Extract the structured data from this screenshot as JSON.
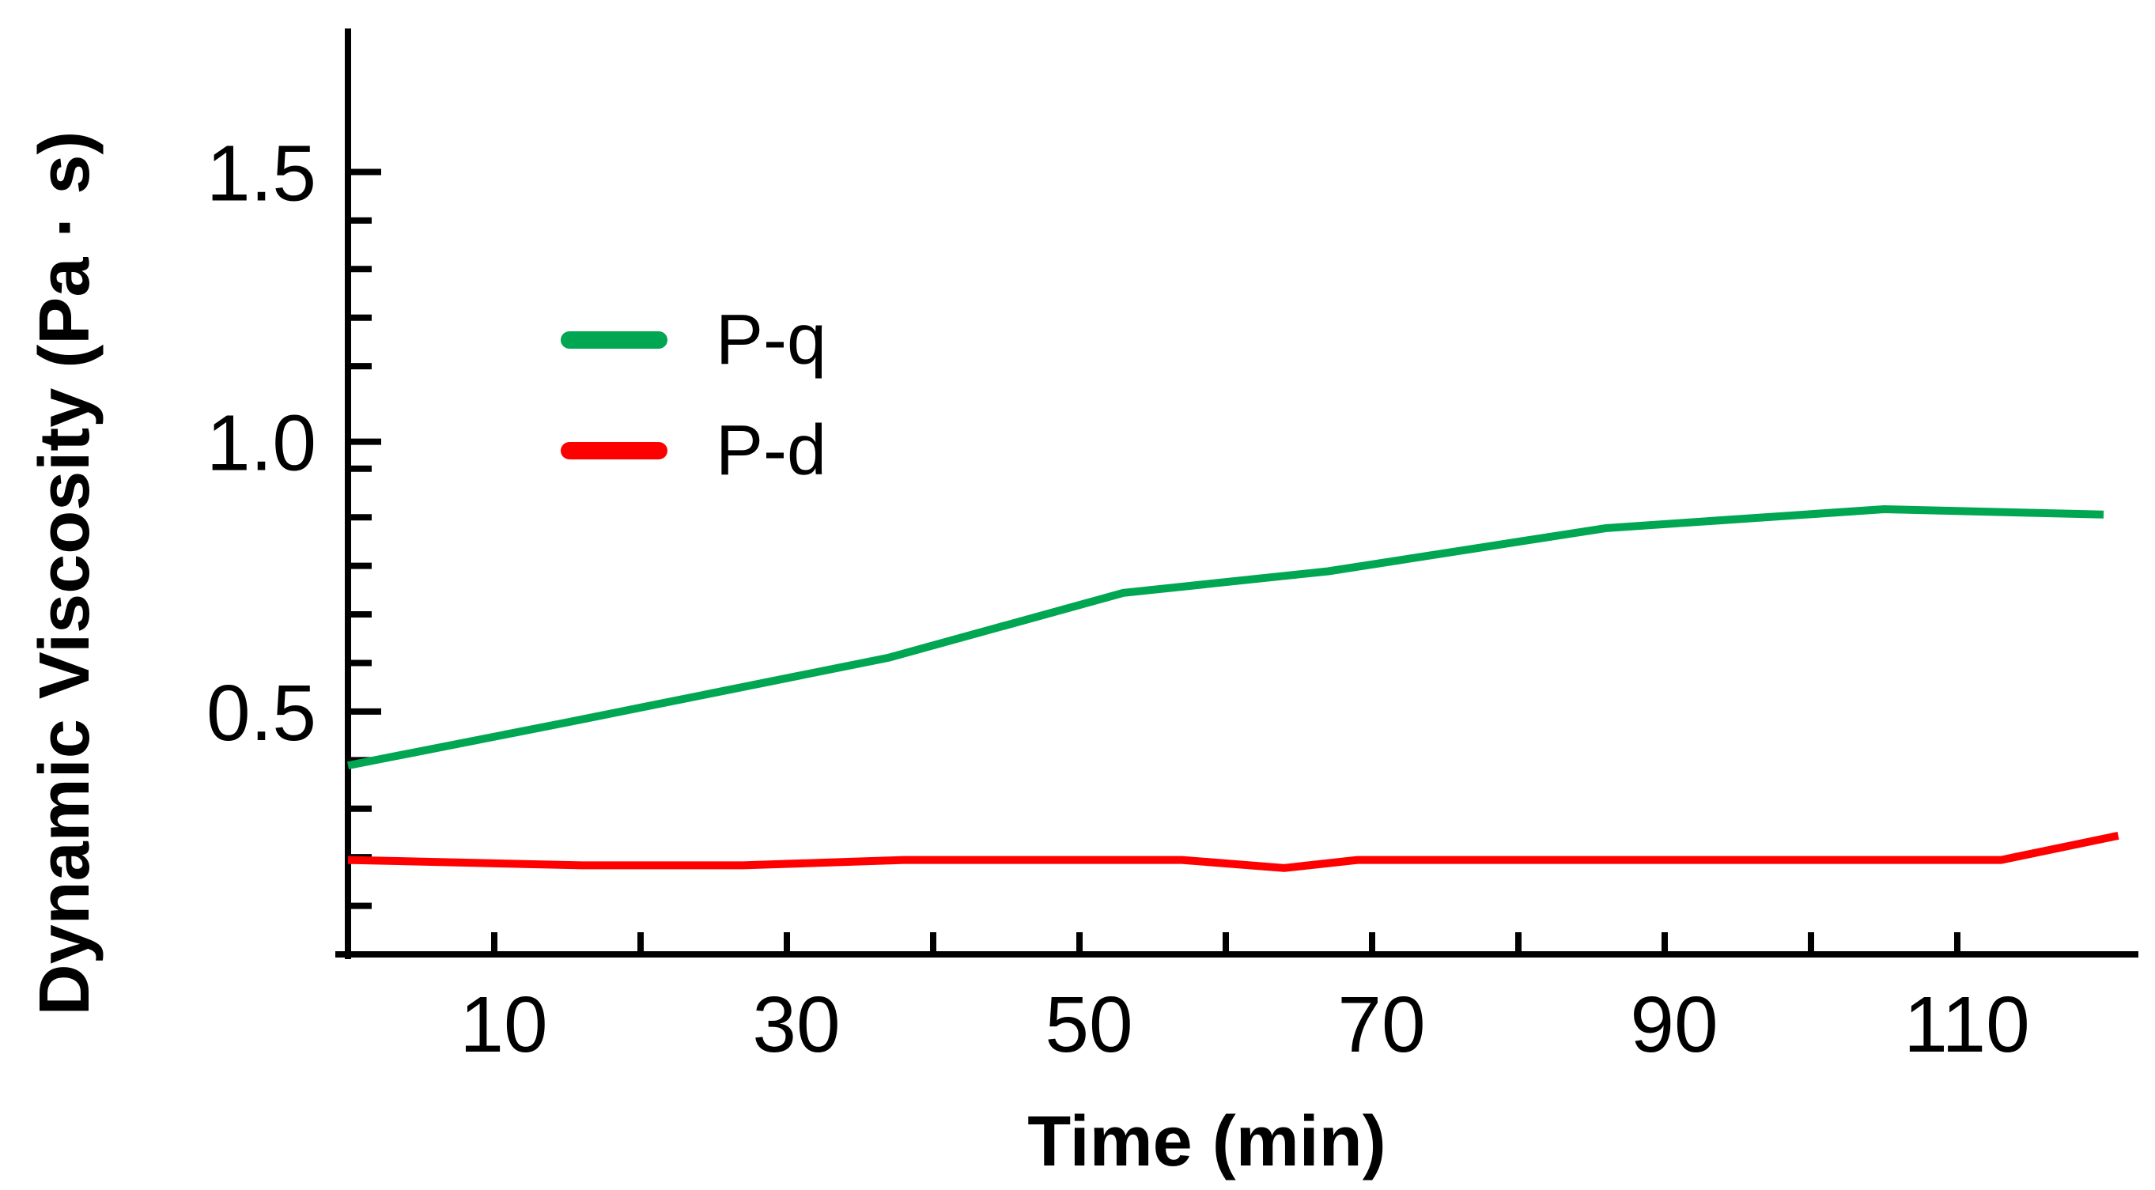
{
  "chart_data": {
    "type": "line",
    "title": "",
    "xlabel": "Time (min)",
    "ylabel": "Dynamic Viscosity (Pa · s)",
    "xlim": [
      0,
      120
    ],
    "ylim": [
      0.05,
      1.76
    ],
    "x_ticks": [
      10,
      30,
      50,
      70,
      90,
      110
    ],
    "x_tick_labels": [
      "10",
      "30",
      "50",
      "70",
      "90",
      "110"
    ],
    "x_minor_ticks": [
      20,
      40,
      60,
      80,
      100
    ],
    "y_ticks": [
      0.5,
      1.0,
      1.5
    ],
    "y_tick_labels": [
      "0.5",
      "1.0",
      "1.5"
    ],
    "y_minor_ticks": [
      0.14,
      0.23,
      0.32,
      0.41,
      0.59,
      0.68,
      0.77,
      0.86,
      0.95,
      1.14,
      1.23,
      1.32,
      1.41
    ],
    "legend_position": "upper-left",
    "series": [
      {
        "name": "P-q",
        "color": "#00a651",
        "x": [
          0,
          15,
          37,
          53,
          67,
          86,
          105,
          120
        ],
        "y": [
          0.4,
          0.48,
          0.6,
          0.72,
          0.76,
          0.84,
          0.875,
          0.865
        ]
      },
      {
        "name": "P-d",
        "color": "#ff0000",
        "x": [
          0,
          16,
          27,
          38,
          57,
          64,
          69,
          113,
          121
        ],
        "y": [
          0.225,
          0.215,
          0.215,
          0.225,
          0.225,
          0.21,
          0.225,
          0.225,
          0.27
        ]
      }
    ]
  }
}
